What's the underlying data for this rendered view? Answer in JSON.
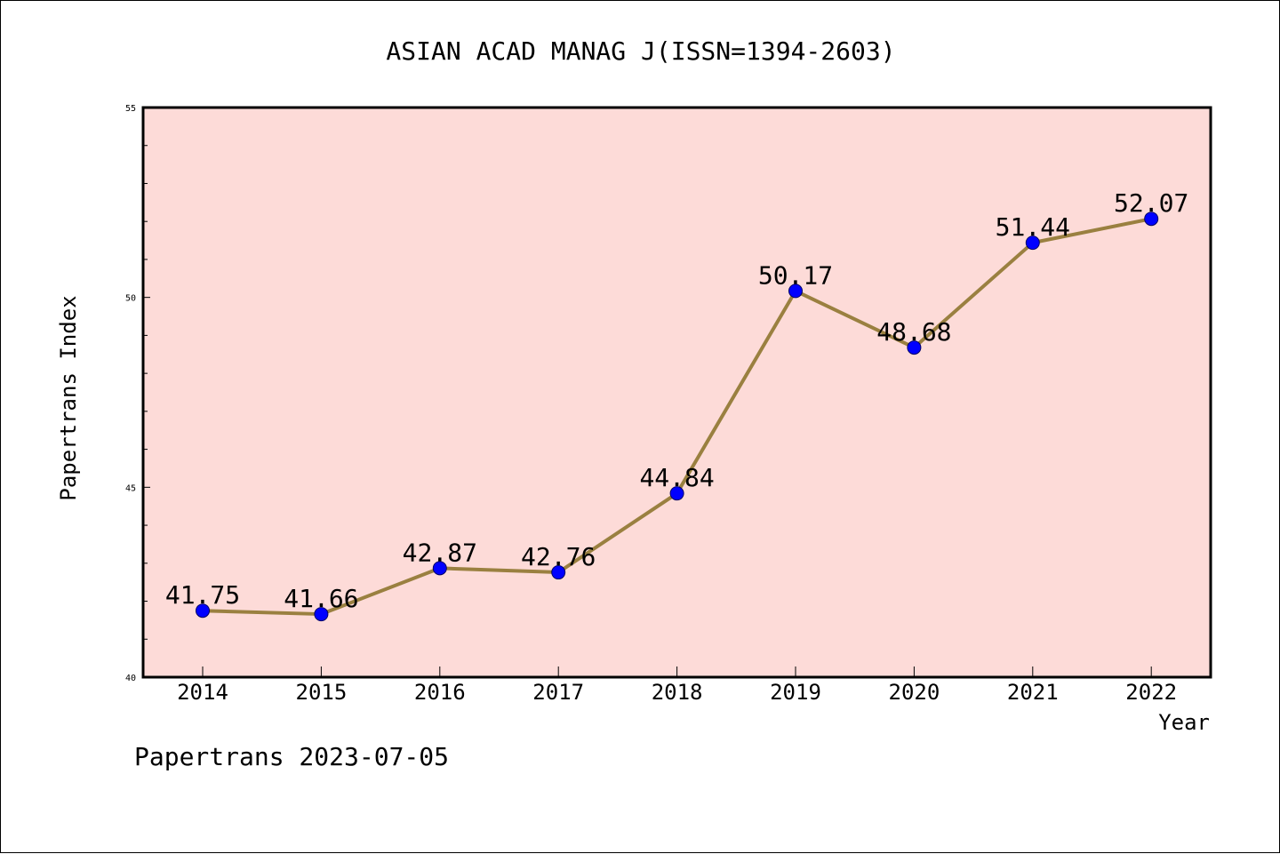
{
  "chart_data": {
    "type": "line",
    "title": "ASIAN ACAD MANAG J(ISSN=1394-2603)",
    "xlabel": "Year",
    "ylabel": "Papertrans Index",
    "categories": [
      "2014",
      "2015",
      "2016",
      "2017",
      "2018",
      "2019",
      "2020",
      "2021",
      "2022"
    ],
    "series": [
      {
        "values": [
          41.75,
          41.66,
          42.87,
          42.76,
          44.84,
          50.17,
          48.68,
          51.44,
          52.07
        ]
      }
    ],
    "data_labels": [
      "41.75",
      "41.66",
      "42.87",
      "42.76",
      "44.84",
      "50.17",
      "48.68",
      "51.44",
      "52.07"
    ],
    "ylim": [
      40,
      55
    ],
    "y_ticks": [
      "40",
      "45",
      "50",
      "55"
    ],
    "grid": false,
    "colors": {
      "plot_background": "#fddbd8",
      "line": "#9a8040",
      "marker": "#0000ff"
    }
  },
  "footer": {
    "text": "Papertrans 2023-07-05"
  }
}
